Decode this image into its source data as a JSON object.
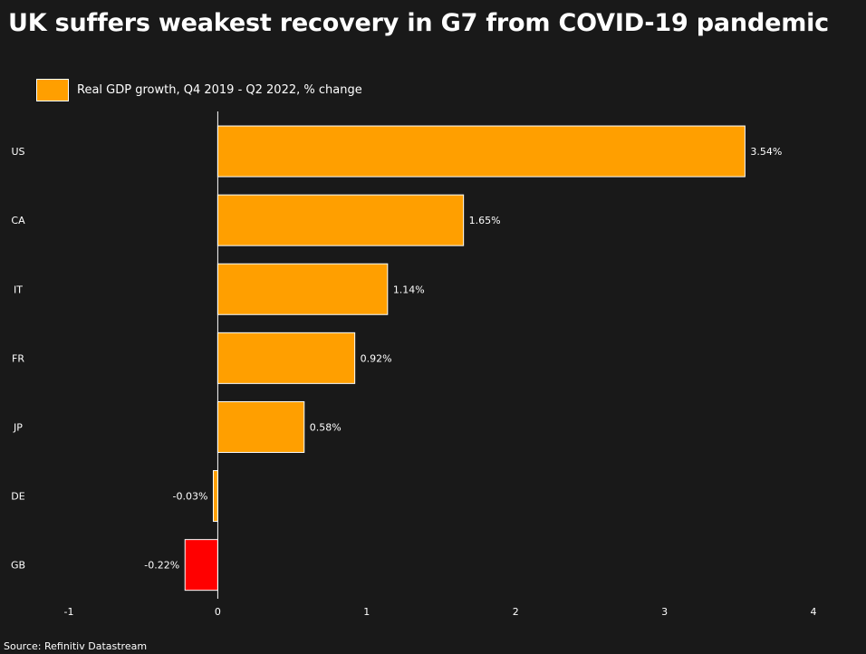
{
  "chart_data": {
    "type": "bar",
    "orientation": "horizontal",
    "title": "UK suffers weakest recovery in G7 from COVID-19 pandemic",
    "categories": [
      "US",
      "CA",
      "IT",
      "FR",
      "JP",
      "DE",
      "GB"
    ],
    "series": [
      {
        "name": "Real GDP growth, Q4 2019 - Q2 2022, % change",
        "values": [
          3.54,
          1.65,
          1.14,
          0.92,
          0.58,
          -0.03,
          -0.22
        ]
      }
    ],
    "value_labels": [
      "3.54%",
      "1.65%",
      "1.14%",
      "0.92%",
      "0.58%",
      "-0.03%",
      "-0.22%"
    ],
    "xlim": [
      -1,
      4
    ],
    "xticks": [
      -1,
      0,
      1,
      2,
      3,
      4
    ],
    "xtick_labels": [
      "-1",
      "0",
      "1",
      "2",
      "3",
      "4"
    ],
    "grid": false,
    "legend_position": "top-left",
    "colors": {
      "default_bar": "#ff9f00",
      "highlight_bar": "#ff0000",
      "highlight_category": "GB",
      "bar_border": "#ffffff",
      "background": "#191919",
      "text": "#ffffff"
    }
  },
  "source": "Source: Refinitiv Datastream"
}
